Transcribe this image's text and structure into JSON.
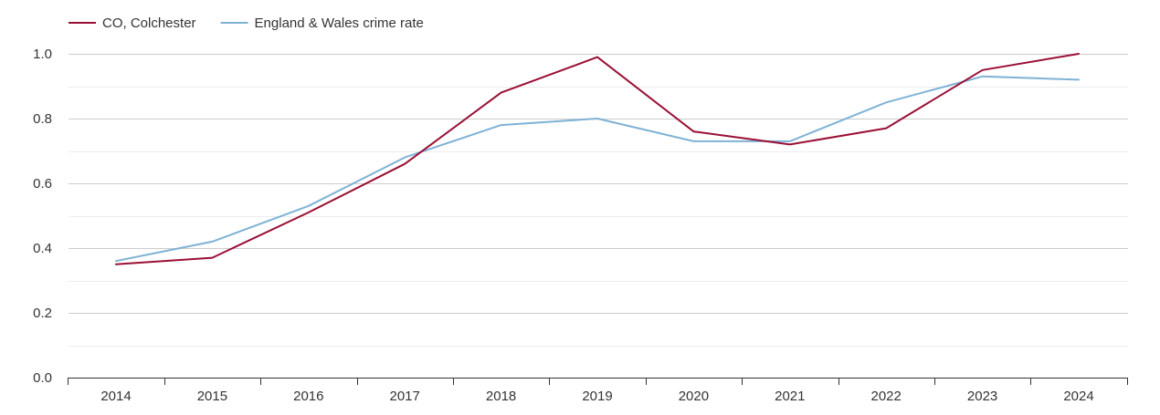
{
  "chart_data": {
    "type": "line",
    "x": [
      "2014",
      "2015",
      "2016",
      "2017",
      "2018",
      "2019",
      "2020",
      "2021",
      "2022",
      "2023",
      "2024"
    ],
    "series": [
      {
        "name": "CO, Colchester",
        "color": "#9a0f34",
        "values": [
          0.35,
          0.37,
          0.51,
          0.66,
          0.88,
          0.99,
          0.76,
          0.72,
          0.77,
          0.95,
          1.0
        ]
      },
      {
        "name": "England & Wales crime rate",
        "color": "#7fb2d5",
        "values": [
          0.36,
          0.42,
          0.53,
          0.68,
          0.78,
          0.8,
          0.73,
          0.73,
          0.85,
          0.93,
          0.92
        ]
      }
    ],
    "y_ticks": [
      "0.0",
      "0.2",
      "0.4",
      "0.6",
      "0.8",
      "1.0"
    ],
    "ylim": [
      0,
      1.0
    ],
    "grid": true,
    "minor_grid": true,
    "legend_position": "top-left",
    "title": "",
    "xlabel": "",
    "ylabel": ""
  }
}
